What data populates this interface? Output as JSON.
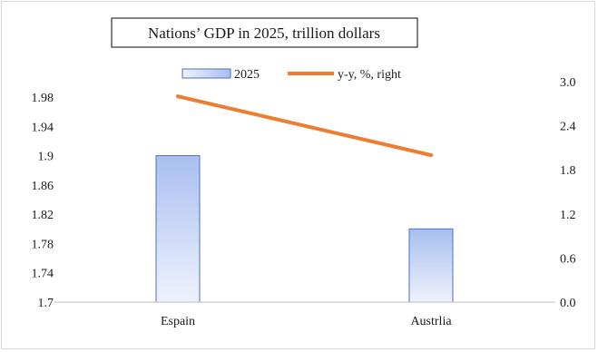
{
  "chart_data": {
    "type": "bar",
    "title": "Nations’ GDP in 2025, trillion dollars",
    "categories": [
      "Espain",
      "Austrlia"
    ],
    "series": [
      {
        "name": "2025",
        "type": "bar",
        "axis": "left",
        "values": [
          1.9,
          1.8
        ]
      },
      {
        "name": "y-y, %, right",
        "type": "line",
        "axis": "right",
        "values": [
          2.8,
          2.0
        ]
      }
    ],
    "y_left": {
      "min": 1.7,
      "max": 1.98,
      "ticks": [
        "1.7",
        "1.74",
        "1.78",
        "1.82",
        "1.86",
        "1.9",
        "1.94",
        "1.98"
      ]
    },
    "y_right": {
      "min": 0.0,
      "max": 3.0,
      "ticks": [
        "0.0",
        "0.6",
        "1.2",
        "1.8",
        "2.4",
        "3.0"
      ]
    },
    "grid": false,
    "legend_position": "top-center",
    "colors": {
      "bar_top": "#a9bff0",
      "bar_bottom": "#eef2fc",
      "bar_border": "#4a6fd0",
      "line": "#ed7d31",
      "axis": "#bfbfbf"
    }
  }
}
